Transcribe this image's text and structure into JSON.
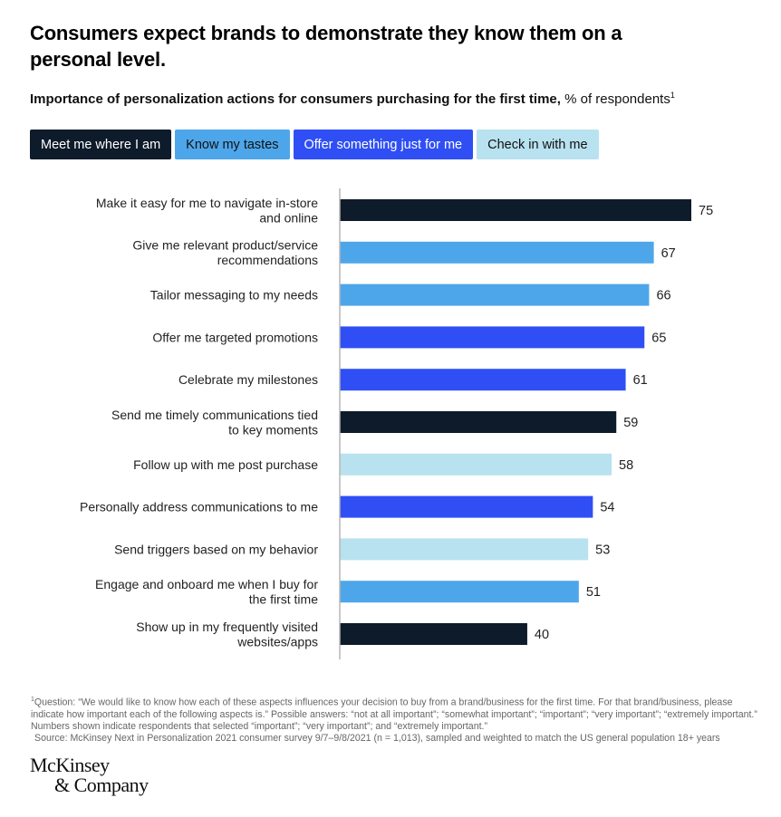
{
  "header": {
    "title": "Consumers expect brands to demonstrate they know them on a personal level.",
    "subtitle_bold": "Importance of personalization actions for consumers purchasing for the first time,",
    "subtitle_regular": " % of respondents",
    "subtitle_sup": "1"
  },
  "legend": [
    {
      "label": "Meet me where I am",
      "color": "#0d1b2a",
      "text_color": "#ffffff"
    },
    {
      "label": "Know my tastes",
      "color": "#4ea6ea",
      "text_color": "#111111"
    },
    {
      "label": "Offer something just for me",
      "color": "#2f4ff5",
      "text_color": "#ffffff"
    },
    {
      "label": "Check in with me",
      "color": "#b8e2ef",
      "text_color": "#111111"
    }
  ],
  "chart_data": {
    "type": "bar",
    "orientation": "horizontal",
    "title": "Importance of personalization actions for consumers purchasing for the first time",
    "unit": "% of respondents",
    "xlabel": "",
    "ylabel": "",
    "xlim": [
      0,
      75
    ],
    "grid": false,
    "legend_position": "top-left",
    "categories": [
      "Make it easy for me to navigate in-store and online",
      "Give me relevant product/service recommendations",
      "Tailor messaging to my needs",
      "Offer me targeted promotions",
      "Celebrate my milestones",
      "Send me timely communications tied to key moments",
      "Follow up with me post purchase",
      "Personally address communications to me",
      "Send triggers based on my behavior",
      "Engage and onboard me when I buy for the first time",
      "Show up in my frequently visited websites/apps"
    ],
    "label_lines": [
      [
        "Make it easy for me to navigate in-store",
        "and online"
      ],
      [
        "Give me relevant product/service",
        "recommendations"
      ],
      [
        "Tailor messaging to my needs"
      ],
      [
        "Offer me targeted promotions"
      ],
      [
        "Celebrate my milestones"
      ],
      [
        "Send me timely communications tied",
        "to key moments"
      ],
      [
        "Follow up with me post purchase"
      ],
      [
        "Personally address communications to me"
      ],
      [
        "Send triggers based on my behavior"
      ],
      [
        "Engage and onboard me when I buy for",
        "the first time"
      ],
      [
        "Show up in my frequently visited",
        "websites/apps"
      ]
    ],
    "values": [
      75,
      67,
      66,
      65,
      61,
      59,
      58,
      54,
      53,
      51,
      40
    ],
    "groups": [
      "Meet me where I am",
      "Know my tastes",
      "Know my tastes",
      "Offer something just for me",
      "Offer something just for me",
      "Meet me where I am",
      "Check in with me",
      "Offer something just for me",
      "Check in with me",
      "Know my tastes",
      "Meet me where I am"
    ],
    "series_colors": {
      "Meet me where I am": "#0d1b2a",
      "Know my tastes": "#4ea6ea",
      "Offer something just for me": "#2f4ff5",
      "Check in with me": "#b8e2ef"
    }
  },
  "footnote": {
    "sup": "1",
    "text": "Question: “We would like to know how each of these aspects influences your decision to buy from a brand/business for the first time. For that brand/business, please indicate how important each of the following aspects is.” Possible answers: “not at all important”; “somewhat important”; “important”; “very important”; “extremely important.” Numbers shown indicate respondents that selected “important”; “very important”; and “extremely important.”",
    "source": "Source: McKinsey Next in Personalization 2021 consumer survey 9/7–9/8/2021 (n = 1,013), sampled and weighted to match the US general population 18+ years"
  },
  "logo": {
    "line1": "McKinsey",
    "line2": "& Company"
  }
}
